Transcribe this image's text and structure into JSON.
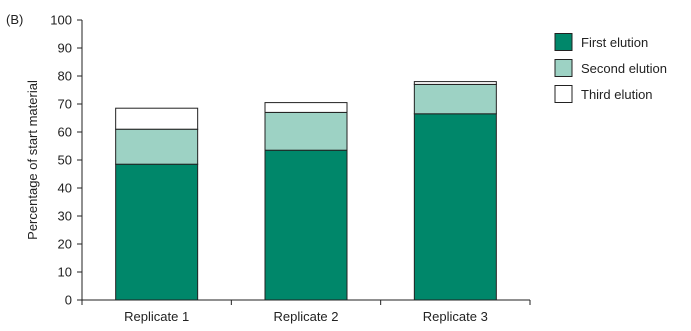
{
  "chart_data": {
    "type": "bar",
    "stacked": true,
    "panel_label": "(B)",
    "title": "",
    "xlabel": "",
    "ylabel": "Percentage of start material",
    "ylim": [
      0,
      100
    ],
    "yticks": [
      0,
      10,
      20,
      30,
      40,
      50,
      60,
      70,
      80,
      90,
      100
    ],
    "categories": [
      "Replicate 1",
      "Replicate 2",
      "Replicate 3"
    ],
    "series": [
      {
        "name": "First elution",
        "values": [
          48.5,
          53.5,
          66.5
        ]
      },
      {
        "name": "Second elution",
        "values": [
          12.5,
          13.5,
          10.5
        ]
      },
      {
        "name": "Third elution",
        "values": [
          7.5,
          3.5,
          1.0
        ]
      }
    ],
    "legend_position": "top-right",
    "grid": false,
    "colors": [
      "#00876a",
      "#9dd2c4",
      "#ffffff"
    ],
    "bar_stroke": "#222222"
  }
}
